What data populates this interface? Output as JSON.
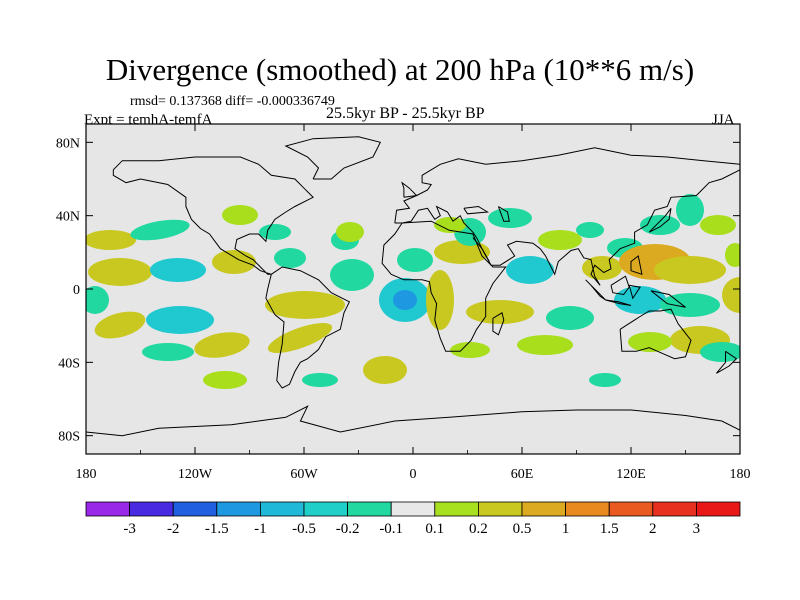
{
  "header": {
    "title": "Divergence (smoothed) at 200 hPa (10**6 m/s)",
    "stats": "rmsd= 0.137368 diff= -0.000336749",
    "expt": "Expt = temhA-temfA",
    "period": "25.5kyr BP - 25.5kyr BP",
    "season": "JJA"
  },
  "axes": {
    "lat_ticks": [
      {
        "label": "80N",
        "lat": 80
      },
      {
        "label": "40N",
        "lat": 40
      },
      {
        "label": "0",
        "lat": 0
      },
      {
        "label": "40S",
        "lat": -40
      },
      {
        "label": "80S",
        "lat": -80
      }
    ],
    "lon_ticks": [
      {
        "label": "180",
        "lon": -180
      },
      {
        "label": "120W",
        "lon": -120
      },
      {
        "label": "60W",
        "lon": -60
      },
      {
        "label": "0",
        "lon": 0
      },
      {
        "label": "60E",
        "lon": 60
      },
      {
        "label": "120E",
        "lon": 120
      },
      {
        "label": "180",
        "lon": 180
      }
    ],
    "lat_range": [
      -90,
      90
    ],
    "lon_range": [
      -180,
      180
    ]
  },
  "colorbar": {
    "labels": [
      "-3",
      "-2",
      "-1.5",
      "-1",
      "-0.5",
      "-0.2",
      "-0.1",
      "0.1",
      "0.2",
      "0.5",
      "1",
      "1.5",
      "2",
      "3"
    ],
    "colors": [
      "#9a28e8",
      "#4a2ae0",
      "#1f5fe0",
      "#1e98e0",
      "#20b8d8",
      "#20d0c8",
      "#20d8a0",
      "#e8e8e8",
      "#a8e020",
      "#c8c820",
      "#dcaa20",
      "#e88a20",
      "#e85a20",
      "#e83020",
      "#e81818"
    ]
  },
  "colors": {
    "background": "#e6e6e6",
    "coast": "#000000",
    "pos_light": "#a8de1c",
    "pos_mid": "#c8c820",
    "pos_strong": "#dcaa20",
    "neg_light": "#20d8a0",
    "neg_mid": "#20c8d0",
    "neg_strong": "#1e98e0"
  }
}
